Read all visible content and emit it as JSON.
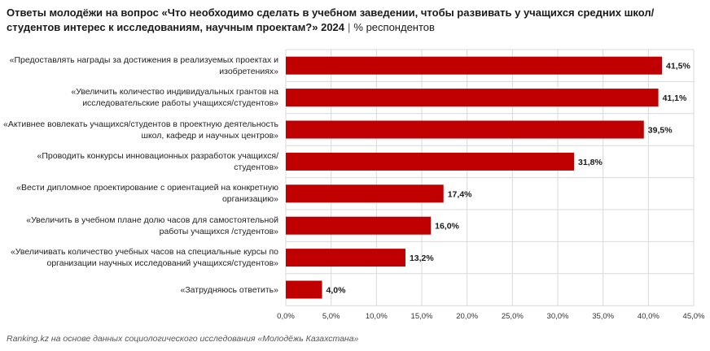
{
  "title": {
    "main": "Ответы молодёжи на вопрос «Что необходимо сделать в учебном заведении, чтобы развивать у учащихся средних школ/студентов интерес к исследованиям, научным проектам?» 2024",
    "unit": "% респондентов"
  },
  "chart_data": {
    "type": "bar",
    "orientation": "horizontal",
    "categories": [
      "«Предоставлять награды за достижения в реализуемых проектах и изобретениях»",
      "«Увеличить количество индивидуальных грантов на исследовательские работы учащихся/студентов»",
      "«Активнее вовлекать учащихся/студентов в проектную деятельность школ, кафедр и научных центров»",
      "«Проводить конкурсы инновационных разработок учащихся/студентов»",
      "«Вести дипломное проектирование с ориентацией на конкретную организацию»",
      "«Увеличить в учебном плане долю часов для самостоятельной работы учащихся /студентов»",
      "«Увеличивать количество учебных часов на специальные курсы по организации научных исследований учащихся/студентов»",
      "«Затрудняюсь ответить»"
    ],
    "values": [
      41.5,
      41.1,
      39.5,
      31.8,
      17.4,
      16.0,
      13.2,
      4.0
    ],
    "value_labels": [
      "41,5%",
      "41,1%",
      "39,5%",
      "31,8%",
      "17,4%",
      "16,0%",
      "13,2%",
      "4,0%"
    ],
    "xlim": [
      0,
      45
    ],
    "x_ticks": [
      0,
      5,
      10,
      15,
      20,
      25,
      30,
      35,
      40,
      45
    ],
    "x_tick_labels": [
      "0,0%",
      "5,0%",
      "10,0%",
      "15,0%",
      "20,0%",
      "25,0%",
      "30,0%",
      "35,0%",
      "40,0%",
      "45,0%"
    ],
    "grid": true,
    "bar_color": "#c00000"
  },
  "source": "Ranking.kz на основе данных социологического исследования «Молодёжь Казахстана»"
}
